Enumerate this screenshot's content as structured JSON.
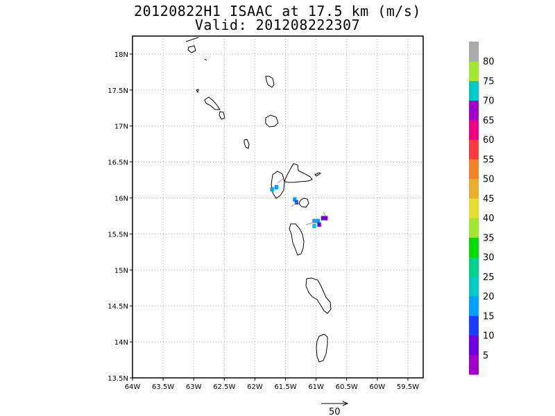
{
  "title_line1": "20120822H1 ISAAC at 17.5 km (m/s)",
  "title_line2": "Valid: 201208222307",
  "chart_data": {
    "type": "heatmap",
    "title": "20120822H1 ISAAC at 17.5 km (m/s)",
    "subtitle": "Valid: 201208222307",
    "xlim": [
      -64,
      -59.25
    ],
    "ylim": [
      13.5,
      18.25
    ],
    "x_ticks": [
      -64,
      -63.5,
      -63,
      -62.5,
      -62,
      -61.5,
      -61,
      -60.5,
      -60,
      -59.5
    ],
    "x_tick_labels": [
      "64W",
      "63.5W",
      "63W",
      "62.5W",
      "62W",
      "61.5W",
      "61W",
      "60.5W",
      "60W",
      "59.5W"
    ],
    "y_ticks": [
      13.5,
      14,
      14.5,
      15,
      15.5,
      16,
      16.5,
      17,
      17.5,
      18
    ],
    "y_tick_labels": [
      "13.5N",
      "14N",
      "14.5N",
      "15N",
      "15.5N",
      "16N",
      "16.5N",
      "17N",
      "17.5N",
      "18N"
    ],
    "grid": true,
    "colorbar": {
      "labels": [
        "5",
        "10",
        "15",
        "20",
        "25",
        "30",
        "35",
        "40",
        "45",
        "50",
        "55",
        "60",
        "65",
        "70",
        "75",
        "80"
      ],
      "colors": [
        "#a000c8",
        "#6e00dc",
        "#1e3cff",
        "#00a0ff",
        "#00c8c8",
        "#00d28c",
        "#00dc00",
        "#a0e632",
        "#e6dc32",
        "#e6af2d",
        "#f08228",
        "#fa3c3c",
        "#f00082",
        "#a000c8",
        "#00c8c8",
        "#a0e632",
        "#aaaaaa"
      ]
    },
    "wind_cells": [
      {
        "lon": -61.65,
        "lat": 16.15,
        "speed": 15
      },
      {
        "lon": -61.72,
        "lat": 16.12,
        "speed": 15
      },
      {
        "lon": -61.35,
        "lat": 15.98,
        "speed": 15
      },
      {
        "lon": -61.32,
        "lat": 15.94,
        "speed": 12
      },
      {
        "lon": -61.03,
        "lat": 15.68,
        "speed": 15
      },
      {
        "lon": -60.97,
        "lat": 15.68,
        "speed": 15
      },
      {
        "lon": -61.03,
        "lat": 15.61,
        "speed": 20
      },
      {
        "lon": -60.95,
        "lat": 15.63,
        "speed": 5
      },
      {
        "lon": -60.89,
        "lat": 15.72,
        "speed": 8
      },
      {
        "lon": -60.84,
        "lat": 15.72,
        "speed": 8
      }
    ],
    "reference_vector": {
      "label": "50",
      "units": "m/s"
    }
  }
}
